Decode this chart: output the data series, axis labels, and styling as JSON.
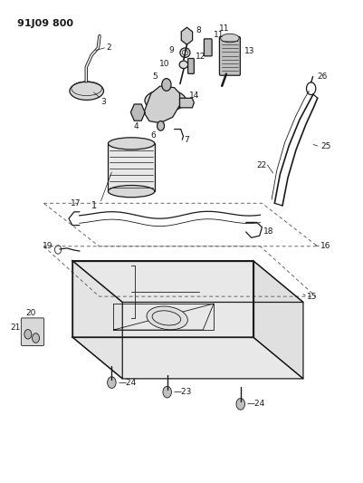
{
  "title": "91J09 800",
  "bg_color": "#ffffff",
  "fig_width": 4.01,
  "fig_height": 5.33,
  "dpi": 100,
  "lc": "#1a1a1a"
}
